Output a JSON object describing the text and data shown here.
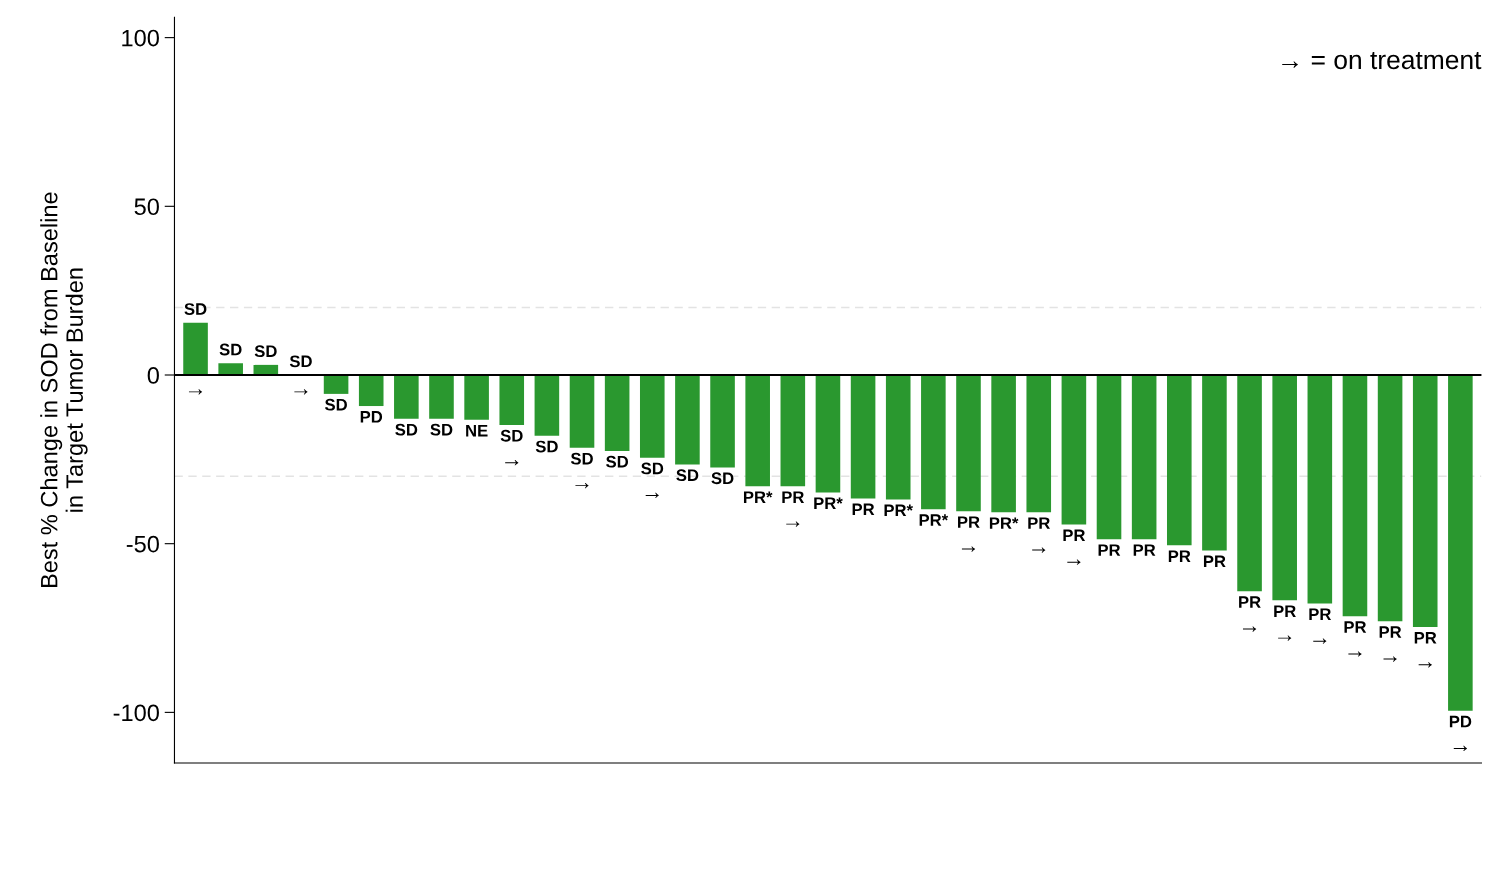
{
  "chart_data": {
    "type": "bar",
    "ylabel": "Best % Change in SOD from Baseline\nin Target Tumor Burden",
    "categories": [
      null,
      null,
      null,
      null,
      null,
      null,
      null,
      null,
      null,
      null,
      null,
      null,
      null,
      null,
      null,
      null,
      null,
      null,
      null,
      null,
      null,
      null,
      null,
      null,
      null,
      null,
      null,
      null,
      null,
      null,
      null,
      null,
      null,
      null,
      null,
      null,
      null
    ],
    "values": [
      15.5,
      3.5,
      3,
      0,
      -5.6,
      -9.2,
      -13,
      -13,
      -13.3,
      -14.8,
      -18,
      -21.6,
      -22.5,
      -24.5,
      -26.5,
      -27.4,
      -33,
      -33,
      -34.8,
      -36.6,
      -36.9,
      -39.8,
      -40.4,
      -40.7,
      -40.7,
      -44.3,
      -48.7,
      -48.7,
      -50.5,
      -52,
      -64.1,
      -66.8,
      -67.7,
      -71.5,
      -73,
      -74.7,
      -99.5
    ],
    "value_labels": [
      "SD\n→",
      "SD",
      "SD",
      "SD\n→",
      "SD",
      "PD",
      "SD",
      "SD",
      "NE",
      "SD\n→",
      "SD",
      "SD\n→",
      "SD",
      "SD\n→",
      "SD",
      "SD",
      "PR*",
      "PR\n→",
      "PR*",
      "PR",
      "PR*",
      "PR*",
      "PR\n→",
      "PR*",
      "PR\n→",
      "PR\n→",
      "PR",
      "PR",
      "PR",
      "PR",
      "PR\n→",
      "PR\n→",
      "PR\n→",
      "PR\n→",
      "PR\n→",
      "PR\n→",
      "PD\n→"
    ],
    "color": "#2a982f",
    "ylim": [
      -115,
      106
    ],
    "yticks": [
      {
        "value": 100,
        "label": "100"
      },
      {
        "value": 50,
        "label": "50"
      },
      {
        "value": 0,
        "label": "0"
      },
      {
        "value": -50,
        "label": "-50"
      },
      {
        "value": -100,
        "label": "-100"
      }
    ],
    "ref_lines": [
      {
        "axis": "y",
        "value": 0,
        "color": "#000000",
        "line_style": "solid"
      },
      {
        "axis": "y",
        "value": 20,
        "color": "#e3e3e3",
        "line_style": "dashed"
      },
      {
        "axis": "y",
        "value": -30,
        "color": "#e3e3e3",
        "line_style": "dashed"
      }
    ],
    "annotations": [
      "→ = on treatment"
    ],
    "grid": false,
    "legend": false
  }
}
